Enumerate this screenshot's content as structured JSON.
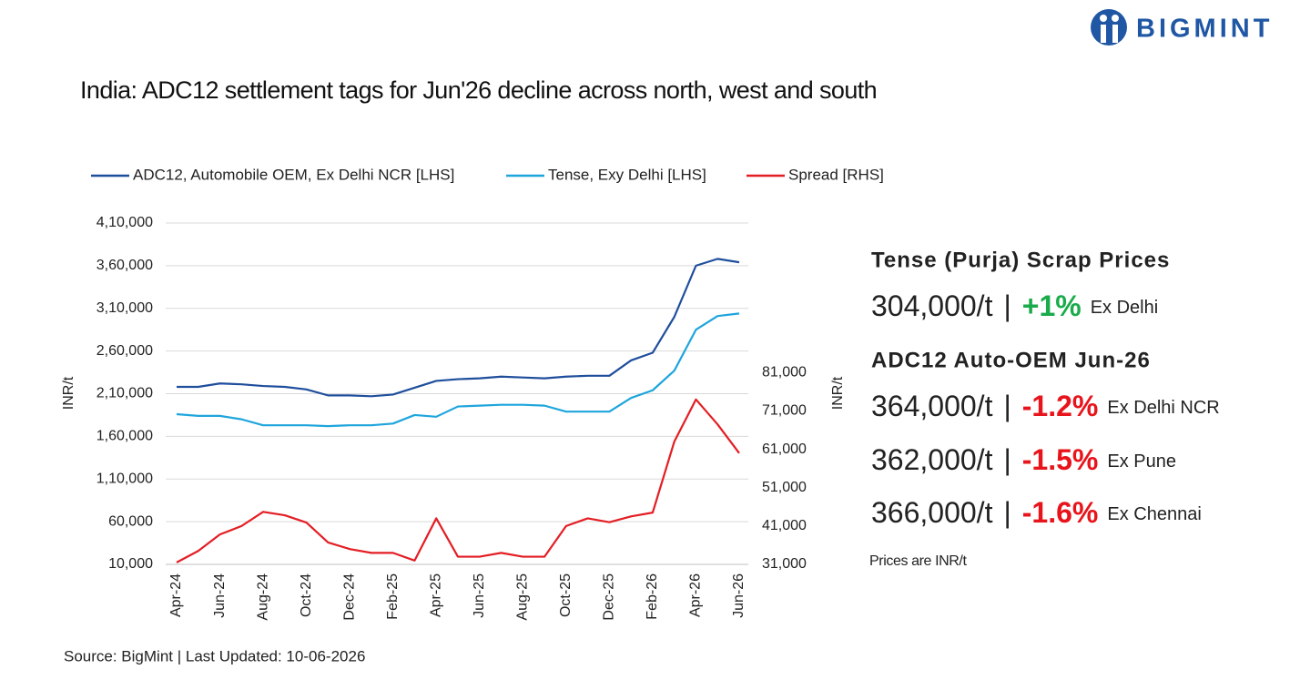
{
  "brand": "BIGMINT",
  "chart_data": {
    "type": "line",
    "title": "India: ADC12 settlement tags for Jun'26 decline across north, west and south",
    "y_label": "INR/t",
    "y2_label": "INR/t",
    "categories": [
      "Apr-24",
      null,
      "Jun-24",
      null,
      "Aug-24",
      null,
      "Oct-24",
      null,
      "Dec-24",
      null,
      "Feb-25",
      null,
      "Apr-25",
      null,
      "Jun-25",
      null,
      "Aug-25",
      null,
      "Oct-25",
      null,
      "Dec-25",
      null,
      "Feb-26",
      null,
      "Apr-26",
      null,
      "Jun-26"
    ],
    "series": [
      {
        "name": "ADC12, Automobile OEM, Ex Delhi NCR [LHS]",
        "color": "#1f4e9c",
        "values": [
          218000,
          218000,
          222000,
          221000,
          219000,
          218000,
          215000,
          208000,
          208000,
          207000,
          209000,
          217000,
          225000,
          227000,
          228000,
          230000,
          229000,
          228000,
          230000,
          231000,
          231000,
          249000,
          258000,
          300000,
          360000,
          368000,
          364000
        ]
      },
      {
        "name": "Tense, Exy Delhi [LHS]",
        "color": "#1ea5dc",
        "values": [
          186000,
          184000,
          184000,
          180000,
          173000,
          173000,
          173000,
          172000,
          173000,
          173000,
          175000,
          185000,
          183000,
          195000,
          196000,
          197000,
          197000,
          196000,
          189000,
          189000,
          189000,
          205000,
          214000,
          237000,
          285000,
          301000,
          304000
        ]
      },
      {
        "name": "Spread [RHS]",
        "color": "#e31e24",
        "axis": "y2",
        "values": [
          31500,
          34500,
          38800,
          41000,
          44700,
          43800,
          41900,
          36700,
          35000,
          34000,
          34000,
          32000,
          43000,
          33000,
          33000,
          34000,
          33000,
          33000,
          41000,
          43000,
          42000,
          43500,
          44500,
          63000,
          74000,
          67500,
          60000
        ]
      }
    ],
    "ylim": [
      10000,
      410000
    ],
    "yticks": [
      {
        "value": 10000,
        "label": "10,000"
      },
      {
        "value": 60000,
        "label": "60,000"
      },
      {
        "value": 110000,
        "label": "1,10,000"
      },
      {
        "value": 160000,
        "label": "1,60,000"
      },
      {
        "value": 210000,
        "label": "2,10,000"
      },
      {
        "value": 260000,
        "label": "2,60,000"
      },
      {
        "value": 310000,
        "label": "3,10,000"
      },
      {
        "value": 360000,
        "label": "3,60,000"
      },
      {
        "value": 410000,
        "label": "4,10,000"
      }
    ],
    "y2lim": [
      31000,
      120000
    ],
    "y2ticks": [
      {
        "value": 31000,
        "label": "31,000"
      },
      {
        "value": 41000,
        "label": "41,000"
      },
      {
        "value": 51000,
        "label": "51,000"
      },
      {
        "value": 61000,
        "label": "61,000"
      },
      {
        "value": 71000,
        "label": "71,000"
      },
      {
        "value": 81000,
        "label": "81,000"
      }
    ],
    "grid": true,
    "legend": "top",
    "source": "Source: BigMint | Last Updated: 10-06-2026"
  },
  "panel": {
    "heading1": "Tense (Purja) Scrap Prices",
    "heading2": "ADC12 Auto-OEM Jun-26",
    "rows": [
      {
        "price": "304,000/t",
        "sep": "|",
        "change": "+1%",
        "color": "#1aab4b",
        "place": "Ex Delhi"
      },
      {
        "price": "364,000/t",
        "sep": "|",
        "change": "-1.2%",
        "color": "#e8141b",
        "place": "Ex Delhi NCR"
      },
      {
        "price": "362,000/t",
        "sep": "|",
        "change": "-1.5%",
        "color": "#e8141b",
        "place": "Ex Pune"
      },
      {
        "price": "366,000/t",
        "sep": "|",
        "change": "-1.6%",
        "color": "#e8141b",
        "place": "Ex Chennai"
      }
    ],
    "note": "Prices are INR/t"
  }
}
